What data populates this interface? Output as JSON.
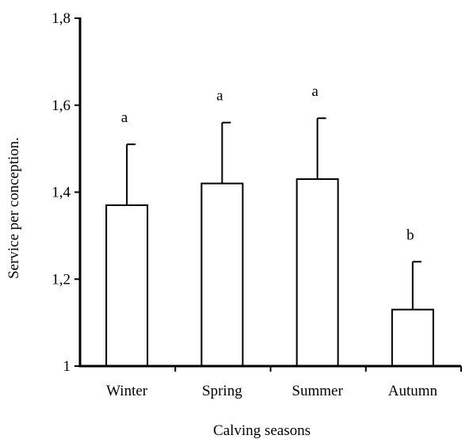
{
  "chart_data": {
    "type": "bar",
    "title": "",
    "xlabel": "Calving seasons",
    "ylabel": "Service per conception.",
    "categories": [
      "Winter",
      "Spring",
      "Summer",
      "Autumn"
    ],
    "values": [
      1.37,
      1.42,
      1.43,
      1.13
    ],
    "errors": [
      0.14,
      0.14,
      0.14,
      0.11
    ],
    "significance_letters": [
      "a",
      "a",
      "a",
      "b"
    ],
    "ylim": [
      1,
      1.8
    ],
    "yticks": [
      1,
      1.2,
      1.4,
      1.6,
      1.8
    ],
    "ytick_labels": [
      "1",
      "1,2",
      "1,4",
      "1,6",
      "1,8"
    ],
    "grid": false,
    "legend": "none",
    "bar_fill": "#ffffff",
    "bar_stroke": "#000000"
  }
}
